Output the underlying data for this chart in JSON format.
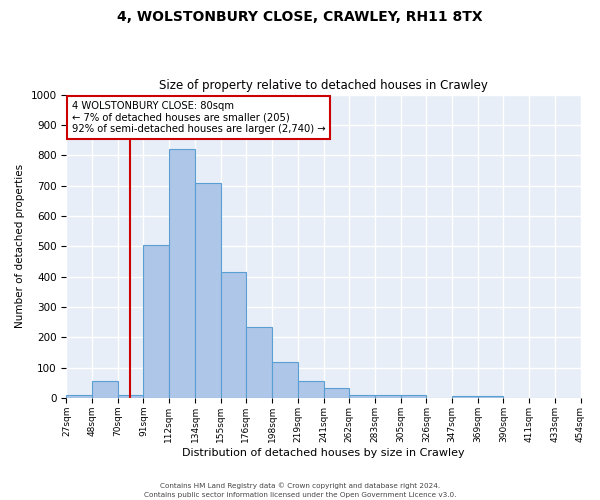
{
  "title": "4, WOLSTONBURY CLOSE, CRAWLEY, RH11 8TX",
  "subtitle": "Size of property relative to detached houses in Crawley",
  "xlabel": "Distribution of detached houses by size in Crawley",
  "ylabel": "Number of detached properties",
  "bar_color": "#aec6e8",
  "bar_edge_color": "#5a9fd4",
  "bg_color": "#e8eef7",
  "grid_color": "#ffffff",
  "vline_x": 80,
  "vline_color": "#cc0000",
  "annotation_line1": "4 WOLSTONBURY CLOSE: 80sqm",
  "annotation_line2": "← 7% of detached houses are smaller (205)",
  "annotation_line3": "92% of semi-detached houses are larger (2,740) →",
  "annotation_box_color": "#cc0000",
  "bin_edges": [
    27,
    48,
    70,
    91,
    112,
    134,
    155,
    176,
    198,
    219,
    241,
    262,
    283,
    305,
    326,
    347,
    369,
    390,
    411,
    433,
    454
  ],
  "bar_heights": [
    10,
    55,
    10,
    505,
    820,
    710,
    415,
    233,
    118,
    55,
    33,
    10,
    10,
    10,
    0,
    5,
    5,
    0,
    0,
    0
  ],
  "ylim": [
    0,
    1000
  ],
  "yticks": [
    0,
    100,
    200,
    300,
    400,
    500,
    600,
    700,
    800,
    900,
    1000
  ],
  "footer_line1": "Contains HM Land Registry data © Crown copyright and database right 2024.",
  "footer_line2": "Contains public sector information licensed under the Open Government Licence v3.0."
}
